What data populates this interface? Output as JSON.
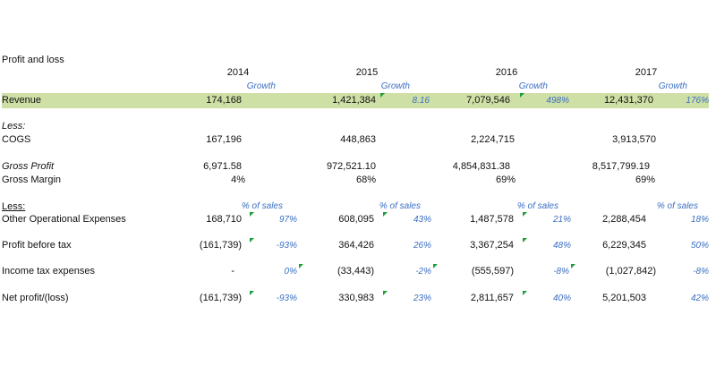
{
  "title": "Profit and loss",
  "years": [
    "2014",
    "2015",
    "2016",
    "2017"
  ],
  "growth_label": "Growth",
  "pct_label": "% of sales",
  "revenue": {
    "label": "Revenue",
    "values": [
      "174,168",
      "1,421,384",
      "7,079,546",
      "12,431,370"
    ],
    "growth": [
      "",
      "8.16",
      "498%",
      "176%"
    ]
  },
  "less1": "Less:",
  "cogs": {
    "label": "COGS",
    "values": [
      "167,196",
      "448,863",
      "2,224,715",
      "3,913,570"
    ]
  },
  "gross_profit": {
    "label": "Gross Profit",
    "values": [
      "6,971.58",
      "972,521.10",
      "4,854,831.38",
      "8,517,799.19"
    ]
  },
  "gross_margin": {
    "label": "Gross Margin",
    "values": [
      "4%",
      "68%",
      "69%",
      "69%"
    ]
  },
  "less2": "Less:",
  "opex": {
    "label": "Other Operational Expenses",
    "values": [
      "168,710",
      "608,095",
      "1,487,578",
      "2,288,454"
    ],
    "pct": [
      "97%",
      "43%",
      "21%",
      "18%"
    ]
  },
  "pbt": {
    "label": "Profit before tax",
    "values": [
      "(161,739)",
      "364,426",
      "3,367,254",
      "6,229,345"
    ],
    "pct": [
      "-93%",
      "26%",
      "48%",
      "50%"
    ]
  },
  "tax": {
    "label": "Income tax expenses",
    "values": [
      "-",
      "(33,443)",
      "(555,597)",
      "(1,027,842)"
    ],
    "pct": [
      "0%",
      "-2%",
      "-8%",
      "-8%"
    ]
  },
  "net": {
    "label": "Net profit/(loss)",
    "values": [
      "(161,739)",
      "330,983",
      "2,811,657",
      "5,201,503"
    ],
    "pct": [
      "-93%",
      "23%",
      "40%",
      "42%"
    ]
  },
  "colors": {
    "band": "#cfe0a6",
    "accent_text": "#3b6fc2",
    "comment_marker": "#1e9e3a"
  }
}
